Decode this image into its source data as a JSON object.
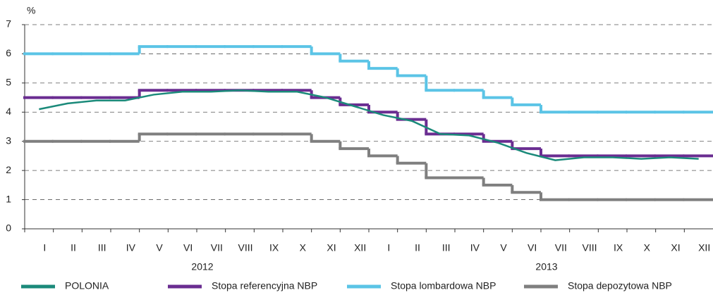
{
  "chart_data": {
    "type": "line",
    "y_label": "%",
    "categories": [
      "I",
      "II",
      "III",
      "IV",
      "V",
      "VI",
      "VII",
      "VIII",
      "IX",
      "X",
      "XI",
      "XII",
      "I",
      "II",
      "III",
      "IV",
      "V",
      "VI",
      "VII",
      "VIII",
      "IX",
      "X",
      "XI",
      "XII"
    ],
    "x_groups": [
      "2012",
      "2013"
    ],
    "ylim": [
      0,
      7
    ],
    "yticks": [
      0,
      1,
      2,
      3,
      4,
      5,
      6,
      7
    ],
    "grid": true,
    "series": [
      {
        "name": "POLONIA",
        "color": "#1b8a7a",
        "drawstyle": "line",
        "values": [
          4.1,
          4.3,
          4.4,
          4.4,
          4.6,
          4.7,
          4.7,
          4.75,
          4.7,
          4.7,
          4.5,
          4.2,
          3.9,
          3.7,
          3.25,
          3.2,
          2.95,
          2.6,
          2.35,
          2.45,
          2.45,
          2.4,
          2.45,
          2.4
        ]
      },
      {
        "name": "Stopa referencyjna NBP",
        "color": "#6a2d91",
        "drawstyle": "steps",
        "values": [
          4.5,
          4.5,
          4.5,
          4.5,
          4.75,
          4.75,
          4.75,
          4.75,
          4.75,
          4.75,
          4.5,
          4.25,
          4.0,
          3.75,
          3.25,
          3.25,
          3.0,
          2.75,
          2.5,
          2.5,
          2.5,
          2.5,
          2.5,
          2.5
        ]
      },
      {
        "name": "Stopa lombardowa NBP",
        "color": "#5bc4e6",
        "drawstyle": "steps",
        "values": [
          6.0,
          6.0,
          6.0,
          6.0,
          6.25,
          6.25,
          6.25,
          6.25,
          6.25,
          6.25,
          6.0,
          5.75,
          5.5,
          5.25,
          4.75,
          4.75,
          4.5,
          4.25,
          4.0,
          4.0,
          4.0,
          4.0,
          4.0,
          4.0
        ]
      },
      {
        "name": "Stopa depozytowa NBP",
        "color": "#7f7f7f",
        "drawstyle": "steps",
        "values": [
          3.0,
          3.0,
          3.0,
          3.0,
          3.25,
          3.25,
          3.25,
          3.25,
          3.25,
          3.25,
          3.0,
          2.75,
          2.5,
          2.25,
          1.75,
          1.75,
          1.5,
          1.25,
          1.0,
          1.0,
          1.0,
          1.0,
          1.0,
          1.0
        ]
      }
    ]
  }
}
